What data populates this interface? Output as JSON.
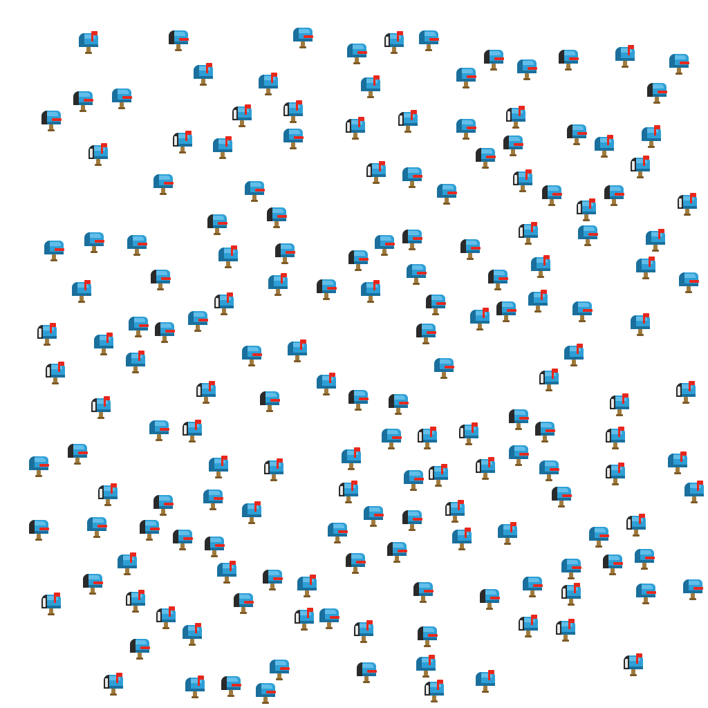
{
  "scene": {
    "background_color": "#ffffff",
    "item_icon": "mailbox-icon",
    "variant_icons": {
      "closed-flag-down": "mailbox-closed-flag-down-icon",
      "closed-flag-up": "mailbox-closed-flag-up-icon",
      "open-empty": "mailbox-open-empty-icon",
      "open-with-mail": "mailbox-open-with-mail-icon"
    },
    "colors": {
      "mailbox_blue": "#2e9fd6",
      "mailbox_blue_light": "#6fc6ee",
      "mailbox_blue_dark": "#1a6f9c",
      "flag_red": "#e8271c",
      "post_brown": "#a07a3c",
      "opening_dark": "#2a2a2a",
      "letter_white": "#e8e8e8"
    }
  }
}
